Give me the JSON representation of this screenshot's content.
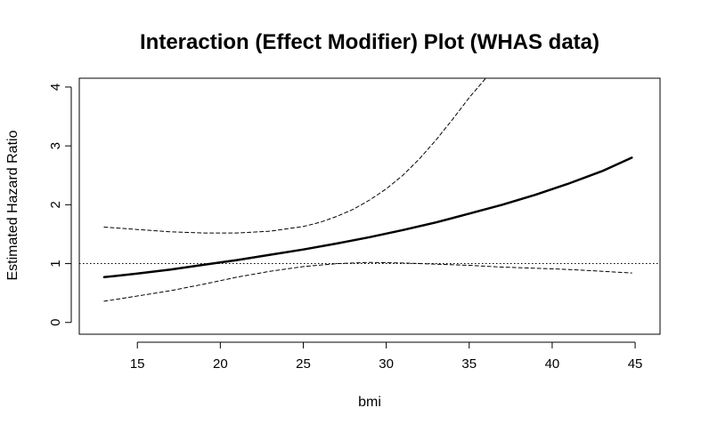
{
  "chart_data": {
    "type": "line",
    "title": "Interaction (Effect Modifier) Plot (WHAS data)",
    "xlabel": "bmi",
    "ylabel": "Estimated Hazard Ratio",
    "xlim": [
      11.5,
      46.5
    ],
    "ylim": [
      -0.2,
      4.15
    ],
    "xticks": [
      15,
      20,
      25,
      30,
      35,
      40,
      45
    ],
    "yticks": [
      0,
      1,
      2,
      3,
      4
    ],
    "grid": false,
    "legend": "none",
    "reference_line": {
      "y": 1,
      "style": "dotted"
    },
    "series": [
      {
        "role": "estimate",
        "style": "solid-thick",
        "x": [
          13,
          15,
          17,
          19,
          21,
          23,
          25,
          27,
          29,
          31,
          33,
          35,
          37,
          39,
          41,
          43,
          44.8
        ],
        "y": [
          0.77,
          0.83,
          0.9,
          0.98,
          1.06,
          1.15,
          1.24,
          1.34,
          1.45,
          1.57,
          1.7,
          1.85,
          2.0,
          2.17,
          2.36,
          2.57,
          2.8
        ]
      },
      {
        "role": "upper-band",
        "style": "dashed",
        "x": [
          13,
          15,
          17,
          19,
          21,
          23,
          25,
          26,
          27,
          28,
          29,
          30,
          31,
          32,
          33,
          34,
          35,
          36,
          36.6
        ],
        "y": [
          1.62,
          1.58,
          1.54,
          1.52,
          1.52,
          1.55,
          1.63,
          1.7,
          1.8,
          1.92,
          2.08,
          2.27,
          2.5,
          2.78,
          3.1,
          3.45,
          3.82,
          4.15,
          4.22
        ]
      },
      {
        "role": "lower-band",
        "style": "dashed",
        "x": [
          13,
          15,
          17,
          19,
          21,
          23,
          25,
          27,
          29,
          31,
          33,
          35,
          37,
          39,
          41,
          43,
          44.8
        ],
        "y": [
          0.36,
          0.45,
          0.54,
          0.65,
          0.77,
          0.87,
          0.95,
          1.0,
          1.02,
          1.01,
          0.99,
          0.97,
          0.94,
          0.92,
          0.9,
          0.87,
          0.84
        ]
      }
    ]
  }
}
